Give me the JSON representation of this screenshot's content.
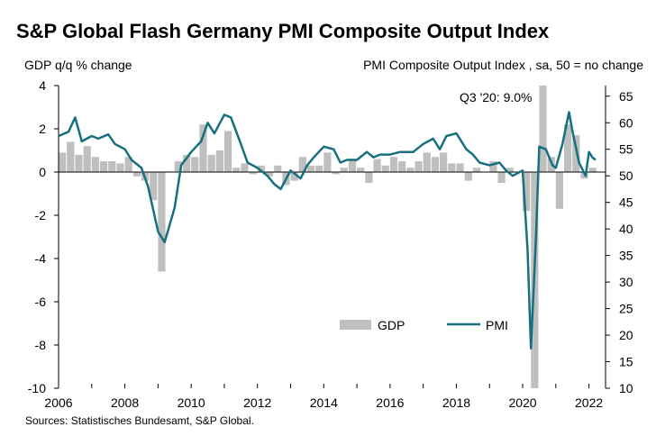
{
  "title": "S&P Global Flash Germany PMI Composite Output Index",
  "left_axis_label": "GDP q/q % change",
  "right_axis_label": "PMI Composite  Output Index  , sa, 50 = no change",
  "source": "Sources: Statistisches Bundesamt, S&P Global.",
  "annotation": "Q3 '20: 9.0%",
  "colors": {
    "gdp": "#bfbfbf",
    "pmi": "#17707f"
  },
  "chart_data": {
    "type": "bar+line",
    "xlim": [
      2006,
      2022.5
    ],
    "x_ticks": [
      "2006",
      "2008",
      "2010",
      "2012",
      "2014",
      "2016",
      "2018",
      "2020",
      "2022"
    ],
    "left_ticks": [
      "4",
      "2",
      "0",
      "-2",
      "-4",
      "-6",
      "-8",
      "-10"
    ],
    "right_ticks": [
      "65",
      "60",
      "55",
      "50",
      "45",
      "40",
      "35",
      "30",
      "25",
      "20",
      "15",
      "10"
    ],
    "ylim_left": [
      -10,
      4
    ],
    "ylim_right": [
      10,
      67
    ],
    "legend": [
      "GDP",
      "PMI"
    ],
    "gdp": {
      "name": "GDP",
      "quarters_start": 2006.0,
      "values": [
        0.9,
        1.4,
        0.8,
        1.2,
        0.7,
        0.5,
        0.5,
        0.4,
        0.7,
        -0.2,
        -0.4,
        -1.3,
        -4.6,
        0.0,
        0.5,
        0.8,
        0.7,
        2.2,
        0.8,
        1.0,
        1.9,
        0.2,
        0.4,
        -0.1,
        0.3,
        -0.2,
        0.3,
        -0.6,
        -0.4,
        0.7,
        0.3,
        0.3,
        0.9,
        -0.1,
        0.2,
        0.6,
        0.2,
        -0.5,
        0.6,
        0.3,
        0.7,
        0.5,
        0.2,
        0.5,
        0.9,
        0.7,
        0.9,
        0.4,
        0.4,
        -0.4,
        0.2,
        0.0,
        0.5,
        -0.5,
        0.2,
        0.0,
        -1.8,
        -10.0,
        9.0,
        0.7,
        -1.7,
        2.2,
        1.7,
        -0.3,
        0.2
      ]
    },
    "pmi": {
      "name": "PMI",
      "x": [
        2006.0,
        2006.3,
        2006.5,
        2006.7,
        2007.0,
        2007.2,
        2007.5,
        2007.7,
        2008.0,
        2008.2,
        2008.5,
        2008.7,
        2009.0,
        2009.2,
        2009.5,
        2009.7,
        2010.0,
        2010.3,
        2010.5,
        2010.7,
        2011.0,
        2011.2,
        2011.5,
        2011.7,
        2012.0,
        2012.3,
        2012.5,
        2012.7,
        2013.0,
        2013.3,
        2013.5,
        2013.7,
        2014.0,
        2014.3,
        2014.5,
        2014.7,
        2015.0,
        2015.3,
        2015.5,
        2015.7,
        2016.0,
        2016.3,
        2016.5,
        2016.7,
        2017.0,
        2017.3,
        2017.5,
        2017.7,
        2018.0,
        2018.3,
        2018.5,
        2018.7,
        2019.0,
        2019.3,
        2019.5,
        2019.7,
        2020.0,
        2020.15,
        2020.25,
        2020.4,
        2020.5,
        2020.7,
        2020.9,
        2021.0,
        2021.2,
        2021.4,
        2021.5,
        2021.7,
        2021.9,
        2022.0,
        2022.1,
        2022.2
      ],
      "values": [
        57.5,
        58.3,
        61.0,
        56.5,
        57.5,
        57.0,
        57.8,
        56.0,
        55.0,
        53.0,
        51.5,
        48.0,
        39.5,
        37.5,
        44.0,
        52.0,
        54.5,
        56.5,
        60.0,
        58.0,
        61.5,
        61.0,
        56.0,
        52.5,
        51.5,
        50.0,
        48.5,
        47.5,
        51.0,
        49.5,
        52.0,
        53.5,
        55.5,
        55.0,
        52.5,
        53.0,
        53.0,
        54.5,
        53.5,
        54.0,
        54.0,
        54.5,
        54.5,
        54.5,
        56.0,
        57.0,
        55.0,
        57.5,
        58.0,
        55.0,
        54.0,
        52.5,
        52.0,
        52.5,
        51.0,
        50.0,
        51.0,
        36.0,
        17.5,
        38.0,
        55.5,
        55.0,
        52.0,
        51.5,
        56.0,
        62.0,
        58.5,
        52.5,
        50.0,
        54.5,
        53.5,
        53.0
      ]
    }
  }
}
